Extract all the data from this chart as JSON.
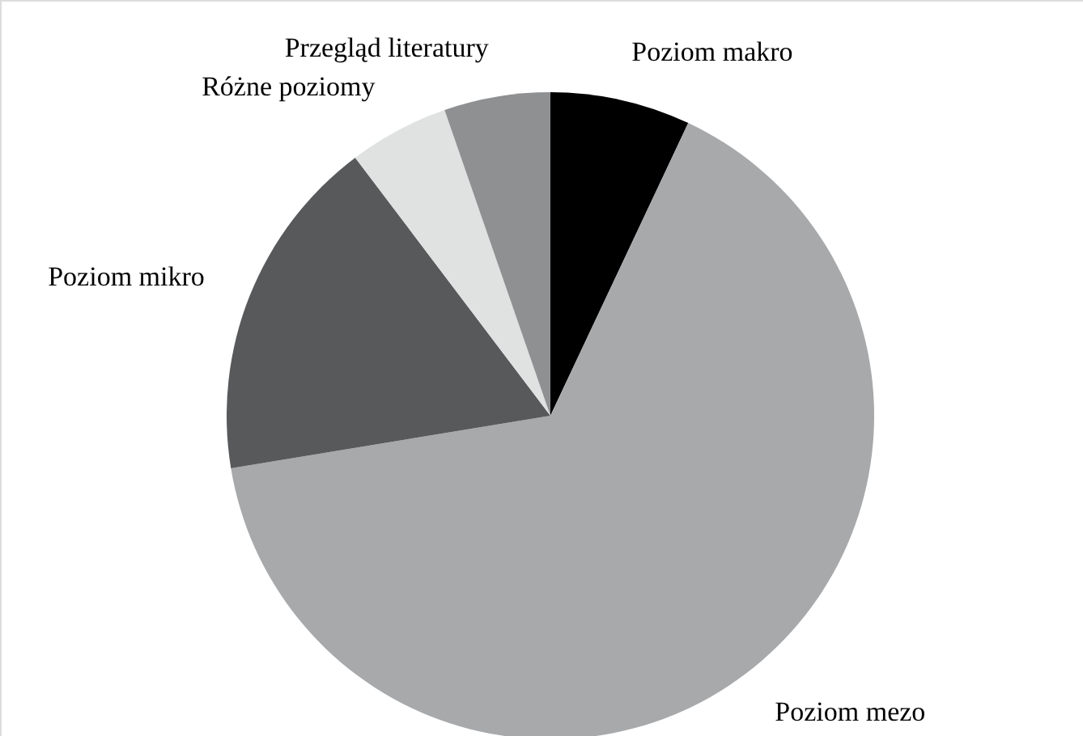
{
  "chart_data": {
    "type": "pie",
    "categories": [
      "Poziom makro",
      "Poziom mezo",
      "Poziom mikro",
      "Różne poziomy",
      "Przegląd literatury"
    ],
    "values": [
      7,
      65.4,
      17.3,
      5,
      5.3
    ],
    "colors": [
      "#000000",
      "#a7a9ab",
      "#58595b",
      "#e0e1e1",
      "#8f9092"
    ]
  }
}
